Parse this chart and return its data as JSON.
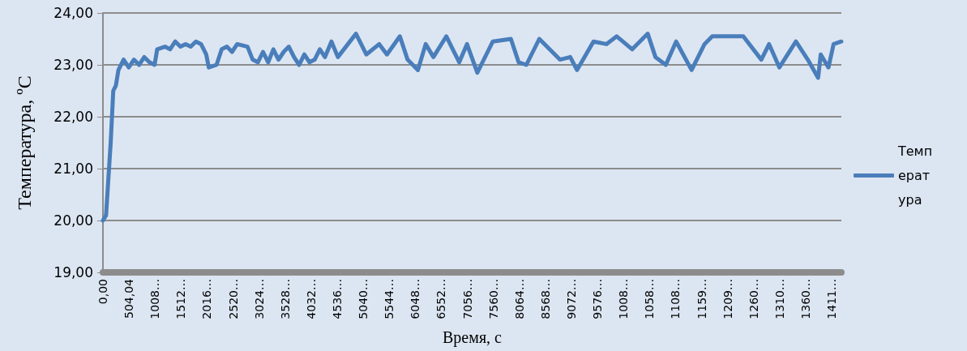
{
  "chart_data": {
    "type": "line",
    "xlabel": "Время, с",
    "ylabel": "Температура, ºC",
    "xlim": [
      0,
      14300
    ],
    "ylim": [
      19,
      24
    ],
    "xticks": [
      {
        "value": 0,
        "label": "0,00"
      },
      {
        "value": 504.04,
        "label": "504,04"
      },
      {
        "value": 1008.08,
        "label": "1008…"
      },
      {
        "value": 1512.12,
        "label": "1512…"
      },
      {
        "value": 2016.16,
        "label": "2016…"
      },
      {
        "value": 2520.2,
        "label": "2520…"
      },
      {
        "value": 3024.24,
        "label": "3024…"
      },
      {
        "value": 3528.28,
        "label": "3528…"
      },
      {
        "value": 4032.32,
        "label": "4032…"
      },
      {
        "value": 4536.36,
        "label": "4536…"
      },
      {
        "value": 5040.4,
        "label": "5040…"
      },
      {
        "value": 5544.44,
        "label": "5544…"
      },
      {
        "value": 6048.48,
        "label": "6048…"
      },
      {
        "value": 6552.52,
        "label": "6552…"
      },
      {
        "value": 7056.56,
        "label": "7056…"
      },
      {
        "value": 7560.6,
        "label": "7560…"
      },
      {
        "value": 8064.64,
        "label": "8064…"
      },
      {
        "value": 8568.68,
        "label": "8568…"
      },
      {
        "value": 9072.72,
        "label": "9072…"
      },
      {
        "value": 9576.76,
        "label": "9576…"
      },
      {
        "value": 10080.8,
        "label": "1008…"
      },
      {
        "value": 10584.84,
        "label": "1058…"
      },
      {
        "value": 11088.88,
        "label": "1108…"
      },
      {
        "value": 11592.92,
        "label": "1159…"
      },
      {
        "value": 12096.96,
        "label": "1209…"
      },
      {
        "value": 12601,
        "label": "1260…"
      },
      {
        "value": 13105.04,
        "label": "1310…"
      },
      {
        "value": 13609.08,
        "label": "1360…"
      },
      {
        "value": 14113.12,
        "label": "1411…"
      }
    ],
    "yticks": [
      {
        "value": 19,
        "label": "19,00"
      },
      {
        "value": 20,
        "label": "20,00"
      },
      {
        "value": 21,
        "label": "21,00"
      },
      {
        "value": 22,
        "label": "22,00"
      },
      {
        "value": 23,
        "label": "23,00"
      },
      {
        "value": 24,
        "label": "24,00"
      }
    ],
    "grid": "y",
    "legend": "right",
    "marker": "none",
    "line_style": "solid",
    "series": [
      {
        "name": "Температура",
        "color": "#4a7ebb",
        "x": [
          0,
          60,
          150,
          200,
          250,
          300,
          400,
          500,
          600,
          700,
          800,
          900,
          1000,
          1050,
          1200,
          1300,
          1400,
          1500,
          1600,
          1700,
          1800,
          1900,
          2000,
          2050,
          2200,
          2300,
          2400,
          2500,
          2600,
          2800,
          2900,
          3000,
          3100,
          3200,
          3300,
          3400,
          3500,
          3600,
          3700,
          3800,
          3900,
          4000,
          4100,
          4200,
          4300,
          4425,
          4550,
          4900,
          5100,
          5350,
          5500,
          5750,
          5900,
          6100,
          6250,
          6400,
          6650,
          6900,
          7050,
          7250,
          7450,
          7550,
          7900,
          8050,
          8200,
          8450,
          8650,
          8850,
          9050,
          9180,
          9500,
          9750,
          9950,
          10250,
          10550,
          10700,
          10900,
          11100,
          11400,
          11650,
          11800,
          12100,
          12400,
          12750,
          12900,
          13100,
          13420,
          13650,
          13850,
          13900,
          14050,
          14150,
          14300
        ],
        "values": [
          20.0,
          20.1,
          21.5,
          22.5,
          22.6,
          22.9,
          23.1,
          22.95,
          23.1,
          23.0,
          23.15,
          23.05,
          23.0,
          23.3,
          23.35,
          23.3,
          23.45,
          23.35,
          23.4,
          23.35,
          23.45,
          23.4,
          23.2,
          22.95,
          23.0,
          23.3,
          23.35,
          23.25,
          23.4,
          23.35,
          23.1,
          23.05,
          23.25,
          23.05,
          23.3,
          23.1,
          23.25,
          23.35,
          23.15,
          23.0,
          23.2,
          23.05,
          23.1,
          23.3,
          23.15,
          23.45,
          23.15,
          23.6,
          23.2,
          23.4,
          23.2,
          23.55,
          23.1,
          22.9,
          23.4,
          23.15,
          23.55,
          23.05,
          23.4,
          22.85,
          23.25,
          23.45,
          23.5,
          23.05,
          23.0,
          23.5,
          23.3,
          23.1,
          23.15,
          22.9,
          23.45,
          23.4,
          23.55,
          23.3,
          23.6,
          23.15,
          23.0,
          23.45,
          22.9,
          23.4,
          23.55,
          23.55,
          23.55,
          23.1,
          23.4,
          22.95,
          23.45,
          23.1,
          22.75,
          23.2,
          22.95,
          23.4,
          23.45
        ]
      }
    ]
  }
}
